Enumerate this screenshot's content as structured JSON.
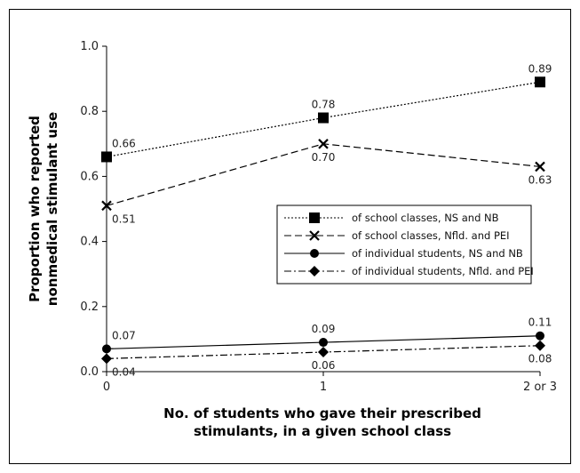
{
  "chart_data": {
    "type": "line",
    "categories": [
      "0",
      "1",
      "2 or 3"
    ],
    "ylabel": [
      "Proportion who reported",
      "nonmedical stimulant use"
    ],
    "xlabel": [
      "No. of students who gave their prescribed",
      "stimulants, in a given school class"
    ],
    "ylim": [
      0,
      1.0
    ],
    "yticks": [
      "0.0",
      "0.2",
      "0.4",
      "0.6",
      "0.8",
      "1.0"
    ],
    "grid": false,
    "legend_position": "center-right",
    "series": [
      {
        "name": "of school classes, NS and NB",
        "values": [
          0.66,
          0.78,
          0.89
        ],
        "labels": [
          "0.66",
          "0.78",
          "0.89"
        ],
        "marker": "square",
        "dash": "2,2",
        "label_pos": "above"
      },
      {
        "name": "of school classes, Nfld. and PEI",
        "values": [
          0.51,
          0.7,
          0.63
        ],
        "labels": [
          "0.51",
          "0.70",
          "0.63"
        ],
        "marker": "x",
        "dash": "8,4",
        "label_pos": "below"
      },
      {
        "name": "of individual students, NS and NB",
        "values": [
          0.07,
          0.09,
          0.11
        ],
        "labels": [
          "0.07",
          "0.09",
          "0.11"
        ],
        "marker": "circle",
        "dash": "",
        "label_pos": "above"
      },
      {
        "name": "of individual students, Nfld. and PEI",
        "values": [
          0.04,
          0.06,
          0.08
        ],
        "labels": [
          "0.04",
          "0.06",
          "0.08"
        ],
        "marker": "diamond",
        "dash": "8,3,2,3",
        "label_pos": "below"
      }
    ]
  }
}
